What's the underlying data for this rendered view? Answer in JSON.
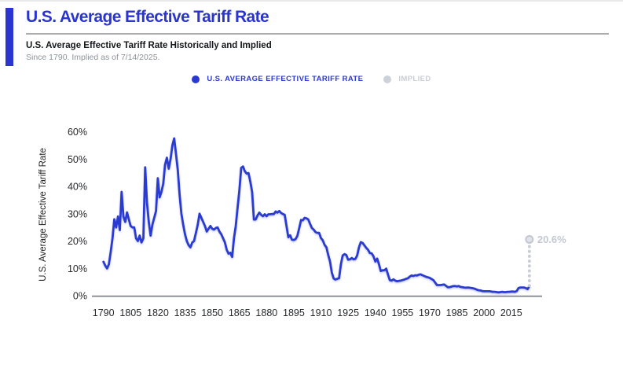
{
  "header": {
    "title": "U.S. Average Effective Tariff Rate",
    "subtitle": "U.S. Average Effective Tariff Rate Historically and Implied",
    "caption": "Since 1790. Implied as of 7/14/2025."
  },
  "legend": {
    "items": [
      {
        "label": "U.S. AVERAGE EFFECTIVE TARIFF RATE",
        "color": "#2b38d1",
        "text_color": "#2b38d1"
      },
      {
        "label": "IMPLIED",
        "color": "#ccd1da",
        "text_color": "#c9cdd5"
      }
    ]
  },
  "colors": {
    "accent": "#2a34cf",
    "line": "#2c3bd2",
    "implied": "#c9cdd6",
    "implied_marker_fill": "#e0e3e9",
    "implied_marker_stroke": "#c2c7d1",
    "implied_text": "#c3c8d2",
    "axis_line": "#8f9296",
    "tick_text": "#26282b",
    "axis_title_text": "#222222"
  },
  "chart_data": {
    "type": "line",
    "title": "U.S. Average Effective Tariff Rate Historically and Implied",
    "xlabel": "",
    "ylabel": "U.S. Average Effective Tariff Rate",
    "ylim": [
      0,
      60
    ],
    "xlim": [
      1788,
      2028
    ],
    "grid": false,
    "legend_position": "top-center",
    "x_ticks": [
      1790,
      1805,
      1820,
      1835,
      1850,
      1865,
      1880,
      1895,
      1910,
      1925,
      1940,
      1955,
      1970,
      1985,
      2000,
      2015
    ],
    "y_ticks": [
      0,
      10,
      20,
      30,
      40,
      50,
      60
    ],
    "y_tick_suffix": "%",
    "series": [
      {
        "name": "U.S. AVERAGE EFFECTIVE TARIFF RATE",
        "x_start": 1790,
        "x_step": 1,
        "values": [
          12.4,
          11.0,
          10.0,
          11.5,
          16.0,
          21.0,
          28.0,
          25.0,
          29.0,
          24.0,
          38.0,
          29.0,
          27.0,
          30.5,
          28.0,
          25.5,
          25.0,
          25.0,
          21.0,
          20.0,
          22.0,
          19.5,
          21.0,
          47.0,
          34.0,
          27.0,
          22.0,
          26.0,
          28.5,
          31.0,
          43.0,
          36.0,
          38.0,
          41.0,
          48.0,
          50.5,
          46.5,
          50.0,
          55.0,
          57.6,
          52.0,
          46.0,
          37.0,
          30.0,
          26.0,
          22.5,
          20.0,
          18.5,
          17.7,
          19.5,
          20.0,
          23.0,
          26.0,
          30.0,
          28.5,
          27.0,
          25.5,
          23.5,
          24.5,
          25.5,
          24.5,
          24.2,
          24.8,
          25.0,
          23.5,
          22.5,
          21.0,
          19.5,
          16.8,
          15.4,
          15.7,
          14.2,
          21.0,
          25.5,
          32.2,
          38.5,
          46.8,
          47.3,
          45.6,
          44.7,
          44.9,
          41.8,
          38.0,
          27.9,
          27.9,
          29.4,
          30.4,
          29.6,
          29.1,
          29.8,
          29.1,
          29.8,
          29.8,
          29.9,
          29.9,
          30.8,
          30.4,
          31.0,
          30.3,
          29.9,
          29.6,
          25.5,
          21.4,
          22.1,
          20.5,
          20.4,
          20.7,
          21.9,
          24.8,
          27.7,
          27.6,
          28.5,
          28.3,
          27.9,
          26.3,
          24.8,
          24.2,
          23.3,
          23.0,
          23.0,
          21.1,
          20.3,
          18.6,
          17.7,
          14.9,
          12.5,
          8.4,
          6.3,
          5.9,
          6.2,
          6.4,
          11.4,
          14.7,
          15.2,
          14.9,
          13.2,
          13.3,
          13.8,
          13.3,
          13.5,
          14.8,
          17.8,
          19.6,
          19.3,
          18.4,
          17.5,
          16.8,
          15.6,
          15.5,
          14.4,
          12.5,
          13.6,
          11.5,
          9.0,
          9.3,
          9.3,
          9.9,
          7.7,
          5.7,
          5.5,
          6.0,
          5.5,
          5.3,
          5.4,
          5.5,
          5.7,
          5.9,
          6.2,
          6.4,
          7.0,
          7.4,
          7.2,
          7.5,
          7.4,
          7.7,
          7.8,
          7.5,
          7.2,
          6.9,
          6.7,
          6.5,
          6.1,
          5.7,
          4.8,
          3.9,
          3.9,
          3.9,
          4.0,
          4.1,
          3.6,
          3.1,
          3.1,
          3.3,
          3.5,
          3.5,
          3.4,
          3.5,
          3.2,
          3.1,
          3.0,
          2.9,
          3.0,
          2.9,
          2.8,
          2.7,
          2.5,
          2.2,
          2.0,
          1.9,
          1.7,
          1.6,
          1.6,
          1.6,
          1.6,
          1.5,
          1.4,
          1.4,
          1.3,
          1.2,
          1.3,
          1.4,
          1.3,
          1.3,
          1.4,
          1.4,
          1.5,
          1.5,
          1.4,
          1.7,
          2.8,
          3.0,
          3.0,
          3.0,
          2.8,
          2.4,
          3.4
        ]
      }
    ],
    "implied": {
      "name": "IMPLIED",
      "x": 2025,
      "value": 20.6,
      "label": "20.6%",
      "style": "dotted-vertical-from-line-end"
    }
  }
}
